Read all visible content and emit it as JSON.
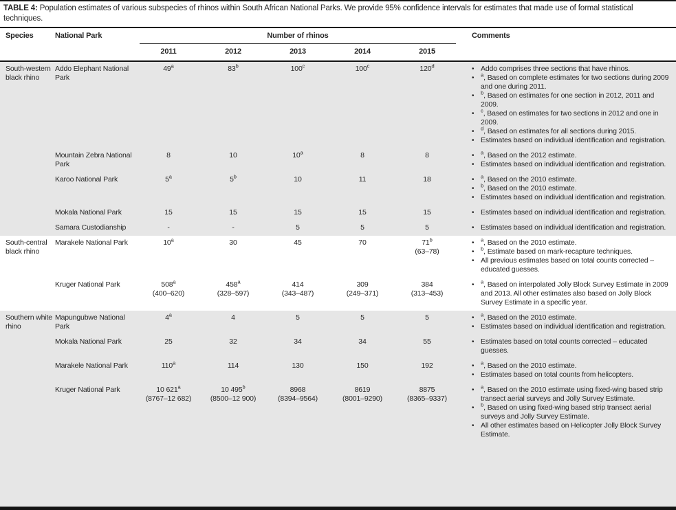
{
  "caption": {
    "label": "TABLE 4:",
    "text": "Population estimates of various subspecies of rhinos within South African National Parks. We provide 95% confidence intervals for estimates that made use of formal statistical techniques."
  },
  "header": {
    "species": "Species",
    "national_park": "National Park",
    "number_of_rhinos": "Number of rhinos",
    "years": [
      "2011",
      "2012",
      "2013",
      "2014",
      "2015"
    ],
    "comments": "Comments"
  },
  "bullet_glyph": "•",
  "colors": {
    "shaded_band": "#e6e6e6",
    "rule_black": "#141414",
    "text": "#262626"
  },
  "sections": [
    {
      "species": "South-western black rhino",
      "shaded": true,
      "rows": [
        {
          "park": "Addo Elephant National Park",
          "values": [
            {
              "n": "49",
              "sup": "a",
              "ci": ""
            },
            {
              "n": "83",
              "sup": "b",
              "ci": ""
            },
            {
              "n": "100",
              "sup": "c",
              "ci": ""
            },
            {
              "n": "100",
              "sup": "c",
              "ci": ""
            },
            {
              "n": "120",
              "sup": "d",
              "ci": ""
            }
          ],
          "comments": [
            {
              "sup": "",
              "text": "Addo comprises three sections that have rhinos."
            },
            {
              "sup": "a",
              "text": ", Based on complete estimates for two sections during 2009 and one during 2011."
            },
            {
              "sup": "b",
              "text": ", Based on estimates for one section in 2012, 2011 and 2009."
            },
            {
              "sup": "c",
              "text": ", Based on estimates for two sections in 2012 and one in 2009."
            },
            {
              "sup": "d",
              "text": ", Based on estimates for all sections during 2015."
            },
            {
              "sup": "",
              "text": "Estimates based on individual identification and registration."
            }
          ]
        },
        {
          "park": "Mountain Zebra National Park",
          "values": [
            {
              "n": "8",
              "sup": "",
              "ci": ""
            },
            {
              "n": "10",
              "sup": "",
              "ci": ""
            },
            {
              "n": "10",
              "sup": "a",
              "ci": ""
            },
            {
              "n": "8",
              "sup": "",
              "ci": ""
            },
            {
              "n": "8",
              "sup": "",
              "ci": ""
            }
          ],
          "comments": [
            {
              "sup": "a",
              "text": ", Based on the 2012 estimate."
            },
            {
              "sup": "",
              "text": "Estimates based on individual identification and registration."
            }
          ]
        },
        {
          "park": "Karoo National Park",
          "values": [
            {
              "n": "5",
              "sup": "a",
              "ci": ""
            },
            {
              "n": "5",
              "sup": "b",
              "ci": ""
            },
            {
              "n": "10",
              "sup": "",
              "ci": ""
            },
            {
              "n": "11",
              "sup": "",
              "ci": ""
            },
            {
              "n": "18",
              "sup": "",
              "ci": ""
            }
          ],
          "comments": [
            {
              "sup": "a",
              "text": ", Based on the 2010 estimate."
            },
            {
              "sup": "b",
              "text": ", Based on the 2010 estimate."
            },
            {
              "sup": "",
              "text": "Estimates based on individual identification and registration."
            }
          ]
        },
        {
          "park": "Mokala National Park",
          "values": [
            {
              "n": "15",
              "sup": "",
              "ci": ""
            },
            {
              "n": "15",
              "sup": "",
              "ci": ""
            },
            {
              "n": "15",
              "sup": "",
              "ci": ""
            },
            {
              "n": "15",
              "sup": "",
              "ci": ""
            },
            {
              "n": "15",
              "sup": "",
              "ci": ""
            }
          ],
          "comments": [
            {
              "sup": "",
              "text": "Estimates based on individual identification and registration."
            }
          ]
        },
        {
          "park": "Samara Custodianship",
          "values": [
            {
              "n": "-",
              "sup": "",
              "ci": ""
            },
            {
              "n": "-",
              "sup": "",
              "ci": ""
            },
            {
              "n": "5",
              "sup": "",
              "ci": ""
            },
            {
              "n": "5",
              "sup": "",
              "ci": ""
            },
            {
              "n": "5",
              "sup": "",
              "ci": ""
            }
          ],
          "comments": [
            {
              "sup": "",
              "text": "Estimates based on individual identification and registration."
            }
          ]
        }
      ]
    },
    {
      "species": "South-central black rhino",
      "shaded": false,
      "rows": [
        {
          "park": "Marakele National Park",
          "values": [
            {
              "n": "10",
              "sup": "a",
              "ci": ""
            },
            {
              "n": "30",
              "sup": "",
              "ci": ""
            },
            {
              "n": "45",
              "sup": "",
              "ci": ""
            },
            {
              "n": "70",
              "sup": "",
              "ci": ""
            },
            {
              "n": "71",
              "sup": "b",
              "ci": "(63–78)"
            }
          ],
          "comments": [
            {
              "sup": "a",
              "text": ", Based on the 2010 estimate."
            },
            {
              "sup": "b",
              "text": ", Estimate based on mark-recapture techniques."
            },
            {
              "sup": "",
              "text": "All previous estimates based on total counts corrected – educated guesses."
            }
          ]
        },
        {
          "park": "Kruger National Park",
          "values": [
            {
              "n": "508",
              "sup": "a",
              "ci": "(400–620)"
            },
            {
              "n": "458",
              "sup": "a",
              "ci": "(328–597)"
            },
            {
              "n": "414",
              "sup": "",
              "ci": "(343–487)"
            },
            {
              "n": "309",
              "sup": "",
              "ci": "(249–371)"
            },
            {
              "n": "384",
              "sup": "",
              "ci": "(313–453)"
            }
          ],
          "comments": [
            {
              "sup": "a",
              "text": ", Based on interpolated Jolly Block Survey Estimate in 2009 and 2013. All other estimates also based on Jolly Block Survey Estimate in a specific year."
            }
          ]
        }
      ]
    },
    {
      "species": "Southern white rhino",
      "shaded": true,
      "rows": [
        {
          "park": "Mapungubwe National Park",
          "values": [
            {
              "n": "4",
              "sup": "a",
              "ci": ""
            },
            {
              "n": "4",
              "sup": "",
              "ci": ""
            },
            {
              "n": "5",
              "sup": "",
              "ci": ""
            },
            {
              "n": "5",
              "sup": "",
              "ci": ""
            },
            {
              "n": "5",
              "sup": "",
              "ci": ""
            }
          ],
          "comments": [
            {
              "sup": "a",
              "text": ", Based on the 2010 estimate."
            },
            {
              "sup": "",
              "text": "Estimates based on individual identification and registration."
            }
          ]
        },
        {
          "park": "Mokala National Park",
          "values": [
            {
              "n": "25",
              "sup": "",
              "ci": ""
            },
            {
              "n": "32",
              "sup": "",
              "ci": ""
            },
            {
              "n": "34",
              "sup": "",
              "ci": ""
            },
            {
              "n": "34",
              "sup": "",
              "ci": ""
            },
            {
              "n": "55",
              "sup": "",
              "ci": ""
            }
          ],
          "comments": [
            {
              "sup": "",
              "text": "Estimates based on total counts corrected – educated guesses."
            }
          ]
        },
        {
          "park": "Marakele National Park",
          "values": [
            {
              "n": "110",
              "sup": "a",
              "ci": ""
            },
            {
              "n": "114",
              "sup": "",
              "ci": ""
            },
            {
              "n": "130",
              "sup": "",
              "ci": ""
            },
            {
              "n": "150",
              "sup": "",
              "ci": ""
            },
            {
              "n": "192",
              "sup": "",
              "ci": ""
            }
          ],
          "comments": [
            {
              "sup": "a",
              "text": ", Based on the 2010 estimate."
            },
            {
              "sup": "",
              "text": "Estimates based on total counts from helicopters."
            }
          ]
        },
        {
          "park": "Kruger National Park",
          "values": [
            {
              "n": "10 621",
              "sup": "a",
              "ci": "(8767–12 682)"
            },
            {
              "n": "10 495",
              "sup": "b",
              "ci": "(8500–12 900)"
            },
            {
              "n": "8968",
              "sup": "",
              "ci": "(8394–9564)"
            },
            {
              "n": "8619",
              "sup": "",
              "ci": "(8001–9290)"
            },
            {
              "n": "8875",
              "sup": "",
              "ci": "(8365–9337)"
            }
          ],
          "comments": [
            {
              "sup": "a",
              "text": ", Based on the 2010 estimate using fixed-wing based strip transect aerial surveys and Jolly Survey Estimate."
            },
            {
              "sup": "b",
              "text": ", Based on using fixed-wing based strip transect aerial surveys and Jolly Survey Estimate."
            },
            {
              "sup": "",
              "text": "All other estimates based on Helicopter Jolly Block Survey Estimate."
            }
          ]
        }
      ]
    }
  ]
}
